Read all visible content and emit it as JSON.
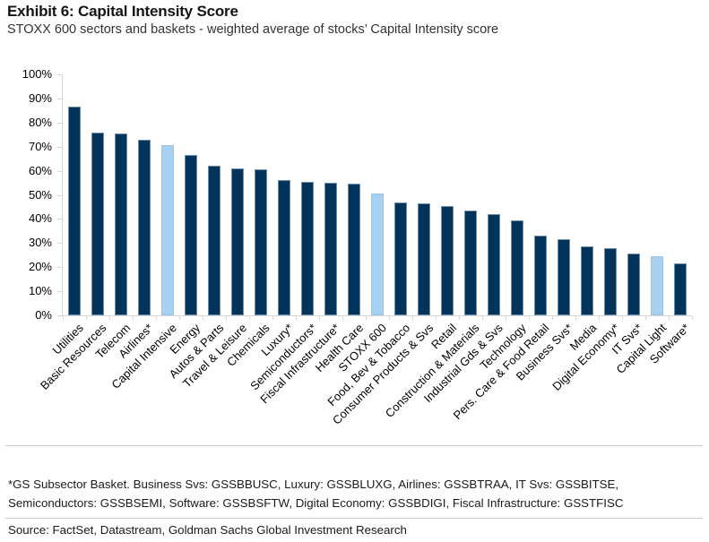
{
  "header": {
    "title": "Exhibit 6: Capital Intensity Score",
    "subtitle": "STOXX 600 sectors and baskets - weighted average of stocks’ Capital Intensity score"
  },
  "chart_data": {
    "type": "bar",
    "title": "Capital Intensity Score",
    "xlabel": "",
    "ylabel": "",
    "ylim": [
      0,
      100
    ],
    "ytick_step": 10,
    "ytick_labels": [
      "0%",
      "10%",
      "20%",
      "30%",
      "40%",
      "50%",
      "60%",
      "70%",
      "80%",
      "90%",
      "100%"
    ],
    "grid": false,
    "legend": "none",
    "categories": [
      "Utilities",
      "Basic Resources",
      "Telecom",
      "Airlines*",
      "Capital Intensive",
      "Energy",
      "Autos & Parts",
      "Travel & Leisure",
      "Chemicals",
      "Luxury*",
      "Semiconductors*",
      "Fiscal Infrastructure*",
      "Health Care",
      "STOXX 600",
      "Food, Bev & Tobacco",
      "Consumer Products & Svs",
      "Retail",
      "Construction & Materials",
      "Industrial Gds & Svs",
      "Technology",
      "Pers. Care & Food Retail",
      "Business Svs*",
      "Media",
      "Digital Economy*",
      "IT Svs*",
      "Capital Light",
      "Software*"
    ],
    "values": [
      86.5,
      76,
      75.5,
      73,
      70.5,
      66.5,
      62,
      61,
      60.5,
      56,
      55.5,
      55,
      54.5,
      50.5,
      47,
      46.5,
      45.5,
      43.5,
      42,
      39.5,
      33,
      31.5,
      28.5,
      28,
      25.5,
      24.5,
      21.5
    ],
    "highlighted_categories": [
      "Capital Intensive",
      "STOXX 600",
      "Capital Light"
    ],
    "colors": {
      "bar": "#02345b",
      "bar_border": "#6e8fa8",
      "highlight": "#a9d1ef",
      "highlight_border": "#9cc3e2",
      "axis": "#d6d6d6"
    }
  },
  "footnote": {
    "text": "*GS Subsector Basket. Business Svs: GSSBBUSC, Luxury: GSSBLUXG, Airlines: GSSBTRAA, IT Svs: GSSBITSE, Semiconductors: GSSBSEMI, Software: GSSBSFTW, Digital Economy: GSSBDIGI, Fiscal Infrastructure: GSSTFISC"
  },
  "source": {
    "text": "Source: FactSet, Datastream, Goldman Sachs Global Investment Research"
  }
}
